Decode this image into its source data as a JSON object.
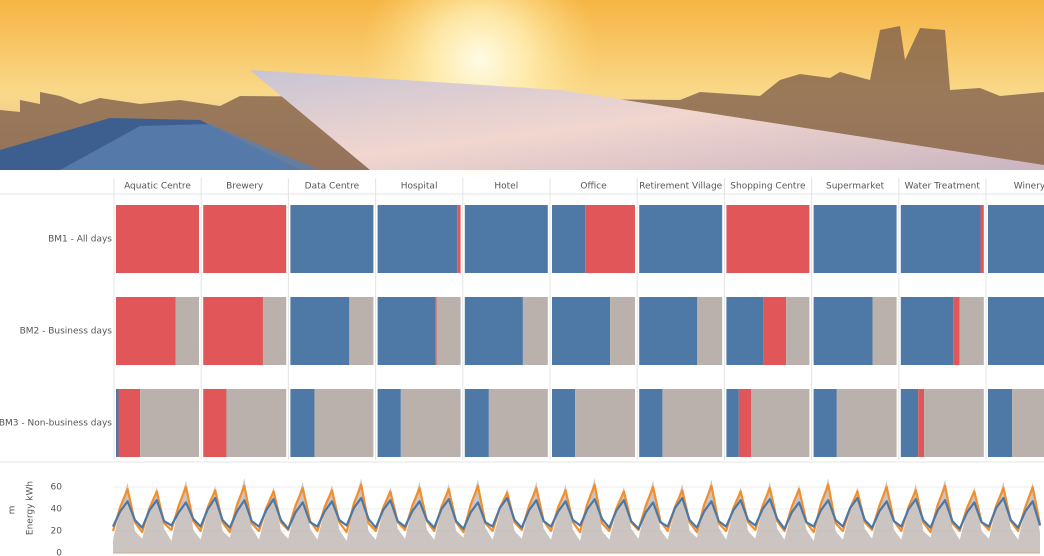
{
  "chart_data": [
    {
      "type": "stacked-bar-grid",
      "columns": [
        "Aquatic Centre",
        "Brewery",
        "Data Centre",
        "Hospital",
        "Hotel",
        "Office",
        "Retirement Village",
        "Shopping Centre",
        "Supermarket",
        "Water Treatment",
        "Winery"
      ],
      "rows": [
        "BM1 - All days",
        "BM2 - Business days",
        "BM3 - Non-business days"
      ],
      "xlim": [
        0,
        100
      ],
      "series": [
        {
          "color": "#4e79a7",
          "values": [
            [
              0,
              0,
              100,
              96,
              100,
              40,
              100,
              0,
              100,
              96,
              100
            ],
            [
              0,
              0,
              71,
              70,
              70,
              70,
              70,
              45,
              71,
              63,
              70
            ],
            [
              3,
              0,
              29,
              28,
              29,
              28,
              28,
              15,
              28,
              21,
              29
            ]
          ]
        },
        {
          "color": "#e15759",
          "values": [
            [
              100,
              100,
              0,
              4,
              0,
              60,
              0,
              100,
              0,
              4,
              0
            ],
            [
              72,
              72,
              0,
              1,
              0,
              0,
              0,
              27,
              0,
              8,
              0
            ],
            [
              26,
              28,
              0,
              0,
              0,
              0,
              0,
              15,
              0,
              7,
              0
            ]
          ]
        },
        {
          "color": "#bab0ac",
          "values": [
            [
              0,
              0,
              0,
              0,
              0,
              0,
              0,
              0,
              0,
              0,
              0
            ],
            [
              28,
              28,
              29,
              29,
              30,
              30,
              30,
              28,
              29,
              29,
              30
            ],
            [
              71,
              72,
              71,
              72,
              71,
              72,
              72,
              70,
              72,
              72,
              71
            ]
          ]
        }
      ]
    },
    {
      "type": "line",
      "annotation": "m",
      "y_label": "Energy kWh",
      "ylim": [
        0,
        70
      ],
      "yticks": [
        0,
        20,
        40,
        60
      ],
      "grid": true,
      "series": [
        {
          "color": "#bab0ac",
          "fill": true,
          "values": [
            12,
            40,
            64,
            20,
            13,
            38,
            60,
            22,
            11,
            42,
            66,
            21,
            12,
            39,
            61,
            20,
            14,
            43,
            68,
            23,
            12,
            38,
            60,
            20,
            13,
            41,
            65,
            22,
            12,
            39,
            62,
            21,
            11,
            44,
            68,
            20,
            12,
            38,
            60,
            22,
            13,
            41,
            65,
            21,
            12,
            40,
            63,
            20,
            14,
            43,
            67,
            23,
            12,
            37,
            59,
            20,
            13,
            41,
            65,
            22,
            12,
            39,
            62,
            21,
            11,
            44,
            68,
            20,
            12,
            38,
            60,
            22,
            13,
            42,
            66,
            21,
            12,
            40,
            63,
            20,
            14,
            43,
            67,
            23,
            12,
            38,
            60,
            20,
            13,
            41,
            65,
            22,
            12,
            39,
            62,
            21,
            11,
            44,
            68,
            20,
            12,
            38,
            60,
            22,
            13,
            42,
            66,
            21,
            12,
            40,
            63,
            20,
            14,
            43,
            67,
            23,
            12,
            38,
            60,
            20,
            13,
            41,
            65,
            22,
            12,
            40,
            64,
            18
          ]
        },
        {
          "color": "#f28e2b",
          "values": [
            20,
            42,
            58,
            28,
            19,
            41,
            56,
            27,
            21,
            43,
            60,
            29,
            20,
            42,
            57,
            28,
            19,
            44,
            61,
            27,
            20,
            41,
            56,
            28,
            21,
            43,
            59,
            29,
            20,
            42,
            57,
            28,
            19,
            45,
            62,
            27,
            20,
            41,
            56,
            28,
            21,
            43,
            59,
            29,
            20,
            42,
            58,
            28,
            19,
            44,
            61,
            27,
            20,
            41,
            55,
            28,
            21,
            43,
            59,
            29,
            20,
            42,
            57,
            28,
            19,
            45,
            62,
            27,
            20,
            41,
            56,
            28,
            21,
            43,
            60,
            29,
            20,
            42,
            57,
            28,
            19,
            44,
            61,
            27,
            20,
            41,
            56,
            28,
            21,
            43,
            59,
            29,
            20,
            42,
            58,
            28,
            19,
            45,
            62,
            27,
            20,
            41,
            56,
            28,
            21,
            43,
            60,
            29,
            20,
            42,
            57,
            28,
            19,
            44,
            61,
            27,
            20,
            41,
            56,
            28,
            21,
            43,
            59,
            29,
            20,
            42,
            60,
            26
          ]
        },
        {
          "color": "#4a78a8",
          "values": [
            24,
            38,
            47,
            30,
            23,
            39,
            48,
            29,
            25,
            37,
            46,
            31,
            24,
            40,
            50,
            30,
            23,
            38,
            48,
            29,
            24,
            39,
            49,
            30,
            22,
            37,
            46,
            28,
            24,
            38,
            47,
            30,
            25,
            41,
            50,
            31,
            23,
            39,
            48,
            29,
            24,
            38,
            47,
            30,
            23,
            40,
            49,
            29,
            22,
            37,
            46,
            28,
            24,
            41,
            50,
            30,
            23,
            39,
            48,
            29,
            24,
            38,
            47,
            30,
            25,
            40,
            49,
            31,
            23,
            39,
            48,
            29,
            22,
            37,
            46,
            28,
            24,
            41,
            50,
            30,
            23,
            38,
            47,
            29,
            24,
            39,
            48,
            30,
            25,
            40,
            49,
            31,
            22,
            37,
            46,
            28,
            24,
            39,
            48,
            30,
            24,
            41,
            50,
            30,
            23,
            38,
            47,
            29,
            24,
            40,
            49,
            30,
            23,
            39,
            48,
            29,
            22,
            37,
            46,
            28,
            24,
            41,
            50,
            30,
            23,
            38,
            47,
            25
          ]
        }
      ]
    }
  ]
}
